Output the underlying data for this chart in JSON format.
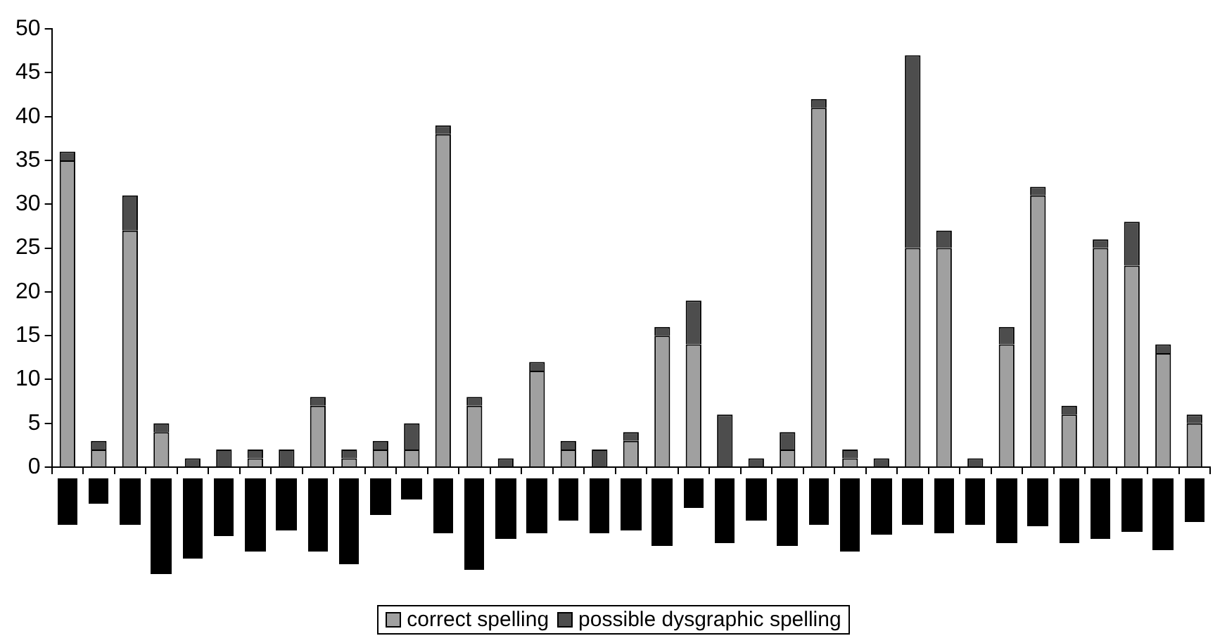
{
  "chart_data": {
    "type": "bar",
    "stacked": true,
    "categories": [
      null,
      null,
      null,
      null,
      null,
      null,
      null,
      null,
      null,
      null,
      null,
      null,
      null,
      null,
      null,
      null,
      null,
      null,
      null,
      null,
      null,
      null,
      null,
      null,
      null,
      null,
      null,
      null,
      null,
      null,
      null,
      null,
      null,
      null,
      null,
      null,
      null
    ],
    "series": [
      {
        "name": "correct spelling",
        "color": "#a0a0a0",
        "values": [
          35,
          2,
          27,
          4,
          0,
          0,
          1,
          0,
          7,
          1,
          2,
          2,
          38,
          7,
          0,
          11,
          2,
          0,
          3,
          15,
          14,
          0,
          0,
          2,
          41,
          1,
          0,
          25,
          25,
          0,
          14,
          31,
          6,
          25,
          23,
          13,
          5
        ]
      },
      {
        "name": "possible dysgraphic spelling",
        "color": "#4d4d4d",
        "values": [
          1,
          1,
          4,
          1,
          1,
          2,
          1,
          2,
          1,
          1,
          1,
          3,
          1,
          1,
          1,
          1,
          1,
          2,
          1,
          1,
          5,
          6,
          1,
          2,
          1,
          1,
          1,
          22,
          2,
          1,
          2,
          1,
          1,
          1,
          5,
          1,
          1
        ]
      }
    ],
    "ylim": [
      0,
      50
    ],
    "yticks": [
      0,
      5,
      10,
      15,
      20,
      25,
      30,
      35,
      40,
      45,
      50
    ],
    "grid": false,
    "legend": "bottom"
  }
}
